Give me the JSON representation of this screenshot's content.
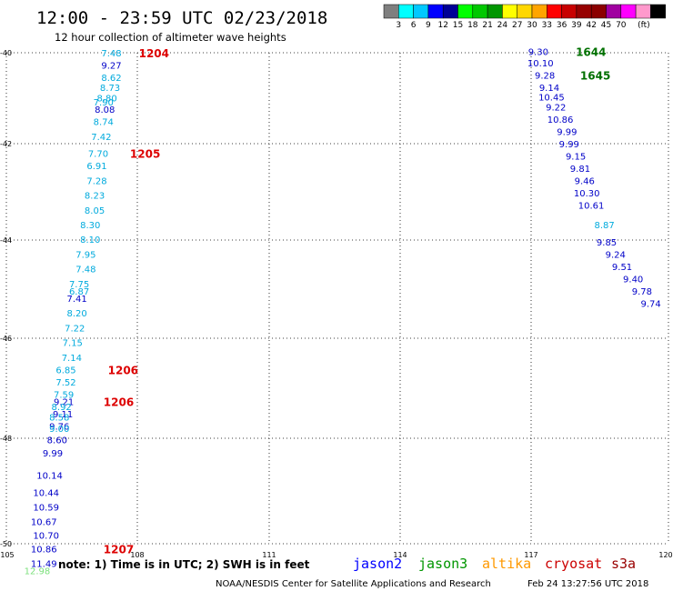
{
  "header": {
    "title": "12:00 - 23:59 UTC 02/23/2018",
    "subtitle": "12 hour collection of altimeter wave heights"
  },
  "colorbar": {
    "unit": "(ft)",
    "colors": [
      "#7f7f7f",
      "#00ffff",
      "#00c8ff",
      "#0000ff",
      "#000096",
      "#00ff00",
      "#00c800",
      "#009600",
      "#ffff00",
      "#ffd700",
      "#ffa500",
      "#ff0000",
      "#c80000",
      "#960000",
      "#8b0000",
      "#a000a0",
      "#ff00ff",
      "#ff99cc",
      "#000000"
    ],
    "labels": [
      "3",
      "6",
      "9",
      "12",
      "15",
      "18",
      "21",
      "24",
      "27",
      "30",
      "33",
      "36",
      "39",
      "42",
      "45",
      "70"
    ]
  },
  "chart_data": {
    "type": "scatter",
    "xlim": [
      105,
      120
    ],
    "ylim": [
      -50,
      -40
    ],
    "x_ticks": [
      "105",
      "108",
      "111",
      "114",
      "117",
      "120"
    ],
    "y_ticks": [
      "-40",
      "-42",
      "-44",
      "-46",
      "-48",
      "-50"
    ],
    "grid": true,
    "series": [
      {
        "color": "#0000c8",
        "points": [
          {
            "x": 107.38,
            "y": -40.25,
            "v": "9.27"
          },
          {
            "x": 107.23,
            "y": -41.15,
            "v": "8.08"
          },
          {
            "x": 106.6,
            "y": -45.0,
            "v": "7.41"
          },
          {
            "x": 106.3,
            "y": -47.1,
            "v": "9.21"
          },
          {
            "x": 106.28,
            "y": -47.35,
            "v": "9.11"
          },
          {
            "x": 106.2,
            "y": -47.6,
            "v": "9.76"
          },
          {
            "x": 106.15,
            "y": -47.88,
            "v": "8.60"
          },
          {
            "x": 106.05,
            "y": -48.15,
            "v": "9.99"
          },
          {
            "x": 105.98,
            "y": -48.6,
            "v": "10.14"
          },
          {
            "x": 105.9,
            "y": -48.95,
            "v": "10.44"
          },
          {
            "x": 105.9,
            "y": -49.25,
            "v": "10.59"
          },
          {
            "x": 105.85,
            "y": -49.55,
            "v": "10.67"
          },
          {
            "x": 105.9,
            "y": -49.82,
            "v": "10.70"
          },
          {
            "x": 105.85,
            "y": -50.1,
            "v": "10.86"
          },
          {
            "x": 105.85,
            "y": -50.4,
            "v": "11.49"
          },
          {
            "x": 117.05,
            "y": -39.97,
            "v": "9.30"
          },
          {
            "x": 117.1,
            "y": -40.2,
            "v": "10.10"
          },
          {
            "x": 117.2,
            "y": -40.45,
            "v": "9.28"
          },
          {
            "x": 117.3,
            "y": -40.7,
            "v": "9.14"
          },
          {
            "x": 117.35,
            "y": -40.9,
            "v": "10.45"
          },
          {
            "x": 117.45,
            "y": -41.1,
            "v": "9.22"
          },
          {
            "x": 117.55,
            "y": -41.35,
            "v": "10.86"
          },
          {
            "x": 117.7,
            "y": -41.6,
            "v": "9.99"
          },
          {
            "x": 117.75,
            "y": -41.85,
            "v": "9.99"
          },
          {
            "x": 117.9,
            "y": -42.1,
            "v": "9.15"
          },
          {
            "x": 118.0,
            "y": -42.35,
            "v": "9.81"
          },
          {
            "x": 118.1,
            "y": -42.6,
            "v": "9.46"
          },
          {
            "x": 118.15,
            "y": -42.85,
            "v": "10.30"
          },
          {
            "x": 118.25,
            "y": -43.1,
            "v": "10.61"
          },
          {
            "x": 118.6,
            "y": -43.85,
            "v": "9.85"
          },
          {
            "x": 118.8,
            "y": -44.1,
            "v": "9.24"
          },
          {
            "x": 118.95,
            "y": -44.35,
            "v": "9.51"
          },
          {
            "x": 119.2,
            "y": -44.6,
            "v": "9.40"
          },
          {
            "x": 119.4,
            "y": -44.85,
            "v": "9.78"
          },
          {
            "x": 119.6,
            "y": -45.1,
            "v": "9.74"
          }
        ]
      },
      {
        "color": "#00aadd",
        "points": [
          {
            "x": 107.38,
            "y": -40.0,
            "v": "7.48"
          },
          {
            "x": 107.38,
            "y": -40.5,
            "v": "8.62"
          },
          {
            "x": 107.35,
            "y": -40.7,
            "v": "8.73"
          },
          {
            "x": 107.28,
            "y": -40.92,
            "v": "8.80"
          },
          {
            "x": 107.2,
            "y": -41.0,
            "v": "7.90"
          },
          {
            "x": 107.2,
            "y": -41.4,
            "v": "8.74"
          },
          {
            "x": 107.15,
            "y": -41.7,
            "v": "7.42"
          },
          {
            "x": 107.08,
            "y": -42.05,
            "v": "7.70"
          },
          {
            "x": 107.05,
            "y": -42.3,
            "v": "6.91"
          },
          {
            "x": 107.05,
            "y": -42.6,
            "v": "7.28"
          },
          {
            "x": 107.0,
            "y": -42.9,
            "v": "8.23"
          },
          {
            "x": 107.0,
            "y": -43.2,
            "v": "8.05"
          },
          {
            "x": 106.9,
            "y": -43.5,
            "v": "8.30"
          },
          {
            "x": 106.9,
            "y": -43.8,
            "v": "8.10"
          },
          {
            "x": 106.8,
            "y": -44.1,
            "v": "7.95"
          },
          {
            "x": 106.8,
            "y": -44.4,
            "v": "7.48"
          },
          {
            "x": 106.65,
            "y": -44.7,
            "v": "7.75"
          },
          {
            "x": 106.65,
            "y": -44.85,
            "v": "6.87"
          },
          {
            "x": 106.6,
            "y": -45.3,
            "v": "8.20"
          },
          {
            "x": 106.55,
            "y": -45.6,
            "v": "7.22"
          },
          {
            "x": 106.5,
            "y": -45.9,
            "v": "7.15"
          },
          {
            "x": 106.48,
            "y": -46.2,
            "v": "7.14"
          },
          {
            "x": 106.35,
            "y": -46.45,
            "v": "6.85"
          },
          {
            "x": 106.35,
            "y": -46.7,
            "v": "7.52"
          },
          {
            "x": 106.3,
            "y": -46.95,
            "v": "7.59"
          },
          {
            "x": 106.25,
            "y": -47.2,
            "v": "8.92"
          },
          {
            "x": 106.2,
            "y": -47.42,
            "v": "8.58"
          },
          {
            "x": 106.2,
            "y": -47.65,
            "v": "9.00"
          },
          {
            "x": 118.55,
            "y": -43.5,
            "v": "8.87"
          }
        ]
      },
      {
        "color": "#7ce07c",
        "points": [
          {
            "x": 105.7,
            "y": -50.55,
            "v": "12.98"
          }
        ]
      }
    ],
    "time_labels": [
      {
        "x": 108.0,
        "y": -40.0,
        "v": "1204",
        "color": "#dd0000"
      },
      {
        "x": 107.8,
        "y": -42.05,
        "v": "1205",
        "color": "#dd0000"
      },
      {
        "x": 107.3,
        "y": -46.45,
        "v": "1206",
        "color": "#dd0000"
      },
      {
        "x": 107.2,
        "y": -47.1,
        "v": "1206",
        "color": "#dd0000"
      },
      {
        "x": 107.2,
        "y": -50.1,
        "v": "1207",
        "color": "#dd0000"
      },
      {
        "x": 117.9,
        "y": -39.97,
        "v": "1644",
        "color": "#007000"
      },
      {
        "x": 118.0,
        "y": -40.45,
        "v": "1645",
        "color": "#007000"
      }
    ]
  },
  "note": "note:  1) Time is in UTC;  2) SWH is in feet",
  "satellites": [
    {
      "name": "jason2",
      "color": "#0000ff"
    },
    {
      "name": "jason3",
      "color": "#009600"
    },
    {
      "name": "altika",
      "color": "#ff9900"
    },
    {
      "name": "cryosat",
      "color": "#cc0000"
    },
    {
      "name": "s3a",
      "color": "#990000"
    }
  ],
  "footer": {
    "source": "NOAA/NESDIS Center for Satellite Applications and Research",
    "timestamp": "Feb 24 13:27:56 UTC 2018"
  }
}
